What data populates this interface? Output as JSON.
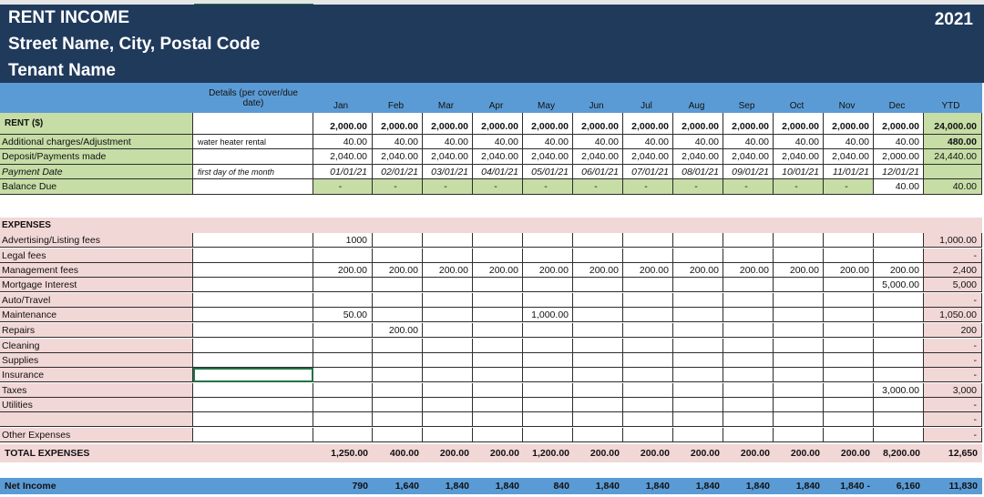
{
  "header": {
    "title": "RENT INCOME",
    "address": "Street Name, City, Postal Code",
    "tenant": "Tenant Name",
    "year": "2021"
  },
  "columns": {
    "details_line1": "Details (per cover/due",
    "details_line2": "date)",
    "months": [
      "Jan",
      "Feb",
      "Mar",
      "Apr",
      "May",
      "Jun",
      "Jul",
      "Aug",
      "Sep",
      "Oct",
      "Nov",
      "Dec"
    ],
    "ytd": "YTD"
  },
  "income": {
    "rent": {
      "label": "RENT ($)",
      "detail": "",
      "values": [
        "2,000.00",
        "2,000.00",
        "2,000.00",
        "2,000.00",
        "2,000.00",
        "2,000.00",
        "2,000.00",
        "2,000.00",
        "2,000.00",
        "2,000.00",
        "2,000.00",
        "2,000.00"
      ],
      "ytd": "24,000.00"
    },
    "additional": {
      "label": "Additional charges/Adjustment",
      "detail": "water heater rental",
      "values": [
        "40.00",
        "40.00",
        "40.00",
        "40.00",
        "40.00",
        "40.00",
        "40.00",
        "40.00",
        "40.00",
        "40.00",
        "40.00",
        "40.00"
      ],
      "ytd": "480.00"
    },
    "deposits": {
      "label": "Deposit/Payments made",
      "detail": "",
      "values": [
        "2,040.00",
        "2,040.00",
        "2,040.00",
        "2,040.00",
        "2,040.00",
        "2,040.00",
        "2,040.00",
        "2,040.00",
        "2,040.00",
        "2,040.00",
        "2,040.00",
        "2,000.00"
      ],
      "ytd": "24,440.00"
    },
    "payment_date": {
      "label": "Payment Date",
      "detail": "first day of the month",
      "values": [
        "01/01/21",
        "02/01/21",
        "03/01/21",
        "04/01/21",
        "05/01/21",
        "06/01/21",
        "07/01/21",
        "08/01/21",
        "09/01/21",
        "10/01/21",
        "11/01/21",
        "12/01/21"
      ],
      "ytd": ""
    },
    "balance": {
      "label": "Balance Due",
      "detail": "",
      "values": [
        "-",
        "-",
        "-",
        "-",
        "-",
        "-",
        "-",
        "-",
        "-",
        "-",
        "-",
        "40.00"
      ],
      "ytd": "40.00"
    }
  },
  "expenses": {
    "title": "EXPENSES",
    "rows": [
      {
        "label": "Advertising/Listing fees",
        "values": [
          "1000",
          "",
          "",
          "",
          "",
          "",
          "",
          "",
          "",
          "",
          "",
          ""
        ],
        "ytd": "1,000.00"
      },
      {
        "label": "Legal fees",
        "values": [
          "",
          "",
          "",
          "",
          "",
          "",
          "",
          "",
          "",
          "",
          "",
          ""
        ],
        "ytd": "-"
      },
      {
        "label": "Management fees",
        "values": [
          "200.00",
          "200.00",
          "200.00",
          "200.00",
          "200.00",
          "200.00",
          "200.00",
          "200.00",
          "200.00",
          "200.00",
          "200.00",
          "200.00"
        ],
        "ytd": "2,400"
      },
      {
        "label": "Mortgage Interest",
        "values": [
          "",
          "",
          "",
          "",
          "",
          "",
          "",
          "",
          "",
          "",
          "",
          "5,000.00"
        ],
        "ytd": "5,000"
      },
      {
        "label": "Auto/Travel",
        "values": [
          "",
          "",
          "",
          "",
          "",
          "",
          "",
          "",
          "",
          "",
          "",
          ""
        ],
        "ytd": "-"
      },
      {
        "label": "Maintenance",
        "values": [
          "50.00",
          "",
          "",
          "",
          "1,000.00",
          "",
          "",
          "",
          "",
          "",
          "",
          ""
        ],
        "ytd": "1,050.00"
      },
      {
        "label": "Repairs",
        "values": [
          "",
          "200.00",
          "",
          "",
          "",
          "",
          "",
          "",
          "",
          "",
          "",
          ""
        ],
        "ytd": "200"
      },
      {
        "label": "Cleaning",
        "values": [
          "",
          "",
          "",
          "",
          "",
          "",
          "",
          "",
          "",
          "",
          "",
          ""
        ],
        "ytd": "-"
      },
      {
        "label": "Supplies",
        "values": [
          "",
          "",
          "",
          "",
          "",
          "",
          "",
          "",
          "",
          "",
          "",
          ""
        ],
        "ytd": "-"
      },
      {
        "label": "Insurance",
        "values": [
          "",
          "",
          "",
          "",
          "",
          "",
          "",
          "",
          "",
          "",
          "",
          ""
        ],
        "ytd": "-"
      },
      {
        "label": "Taxes",
        "values": [
          "",
          "",
          "",
          "",
          "",
          "",
          "",
          "",
          "",
          "",
          "",
          "3,000.00"
        ],
        "ytd": "3,000"
      },
      {
        "label": "Utilities",
        "values": [
          "",
          "",
          "",
          "",
          "",
          "",
          "",
          "",
          "",
          "",
          "",
          ""
        ],
        "ytd": "-"
      },
      {
        "label": "",
        "values": [
          "",
          "",
          "",
          "",
          "",
          "",
          "",
          "",
          "",
          "",
          "",
          ""
        ],
        "ytd": "-"
      },
      {
        "label": "Other Expenses",
        "values": [
          "",
          "",
          "",
          "",
          "",
          "",
          "",
          "",
          "",
          "",
          "",
          ""
        ],
        "ytd": "-"
      }
    ],
    "total": {
      "label": "TOTAL EXPENSES",
      "values": [
        "1,250.00",
        "400.00",
        "200.00",
        "200.00",
        "1,200.00",
        "200.00",
        "200.00",
        "200.00",
        "200.00",
        "200.00",
        "200.00",
        "8,200.00"
      ],
      "ytd": "12,650"
    }
  },
  "net_income": {
    "label": "Net Income",
    "values": [
      "790",
      "1,640",
      "1,840",
      "1,840",
      "840",
      "1,840",
      "1,840",
      "1,840",
      "1,840",
      "1,840",
      "1,840 -",
      "6,160"
    ],
    "ytd": "11,830"
  }
}
